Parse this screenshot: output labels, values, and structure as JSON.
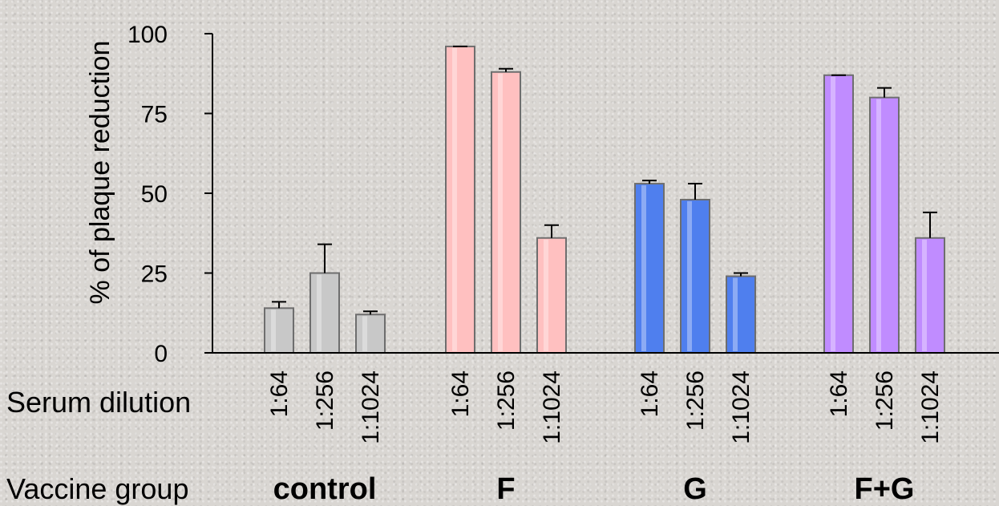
{
  "chart_data": {
    "type": "bar",
    "ylabel": "% of plaque reduction",
    "ylim": [
      0,
      100
    ],
    "yticks": [
      "0",
      "25",
      "50",
      "75",
      "100"
    ],
    "row_labels": {
      "dilution": "Serum dilution",
      "group": "Vaccine group"
    },
    "groups": [
      {
        "name": "control",
        "color": "#c8c8c8",
        "bars": [
          {
            "dilution": "1:64",
            "value": 14,
            "error": 2
          },
          {
            "dilution": "1:256",
            "value": 25,
            "error": 9
          },
          {
            "dilution": "1:1024",
            "value": 12,
            "error": 1
          }
        ]
      },
      {
        "name": "F",
        "color": "#ffc0c0",
        "bars": [
          {
            "dilution": "1:64",
            "value": 96,
            "error": 0
          },
          {
            "dilution": "1:256",
            "value": 88,
            "error": 1
          },
          {
            "dilution": "1:1024",
            "value": 36,
            "error": 4
          }
        ]
      },
      {
        "name": "G",
        "color": "#4f7fee",
        "bars": [
          {
            "dilution": "1:64",
            "value": 53,
            "error": 1
          },
          {
            "dilution": "1:256",
            "value": 48,
            "error": 5
          },
          {
            "dilution": "1:1024",
            "value": 24,
            "error": 1
          }
        ]
      },
      {
        "name": "F+G",
        "color": "#c08cff",
        "bars": [
          {
            "dilution": "1:64",
            "value": 87,
            "error": 0
          },
          {
            "dilution": "1:256",
            "value": 80,
            "error": 3
          },
          {
            "dilution": "1:1024",
            "value": 36,
            "error": 8
          }
        ]
      }
    ],
    "grid": false,
    "legend": "none"
  }
}
